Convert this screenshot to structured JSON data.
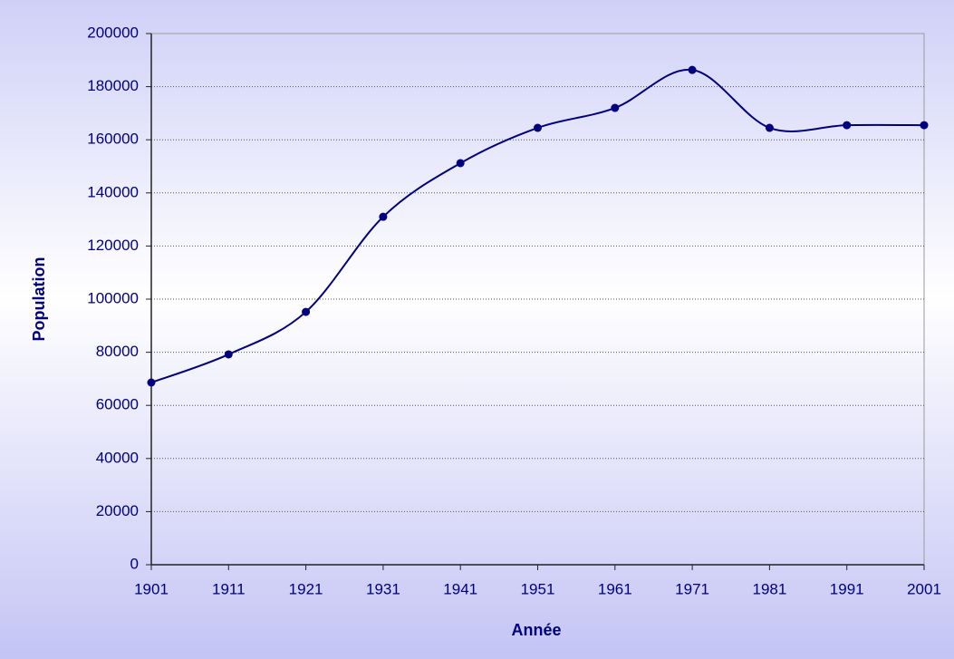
{
  "chart_data": {
    "type": "line",
    "x_label": "Année",
    "y_label": "Population",
    "categories": [
      "1901",
      "1911",
      "1921",
      "1931",
      "1941",
      "1951",
      "1961",
      "1971",
      "1981",
      "1991",
      "2001"
    ],
    "series": [
      {
        "name": "Population",
        "color": "#000080",
        "values": [
          68600,
          79200,
          95200,
          131000,
          151200,
          164500,
          172000,
          186300,
          164500,
          165500,
          165500
        ]
      }
    ],
    "ylim": [
      0,
      200000
    ],
    "yticks": [
      0,
      20000,
      40000,
      60000,
      80000,
      100000,
      120000,
      140000,
      160000,
      180000,
      200000
    ],
    "grid": true,
    "smooth": true,
    "markers": true
  }
}
